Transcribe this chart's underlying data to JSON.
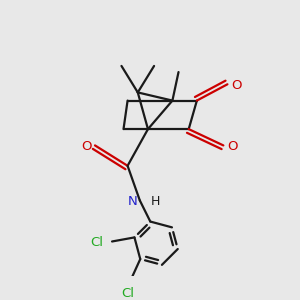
{
  "bg_color": "#e8e8e8",
  "line_color": "#1a1a1a",
  "oxygen_color": "#cc0000",
  "nitrogen_color": "#2222cc",
  "chlorine_color": "#22aa22",
  "line_width": 1.6,
  "fig_size": [
    3.0,
    3.0
  ],
  "dpi": 100,
  "xlim": [
    -2.5,
    2.5
  ],
  "ylim": [
    -3.5,
    3.2
  ]
}
